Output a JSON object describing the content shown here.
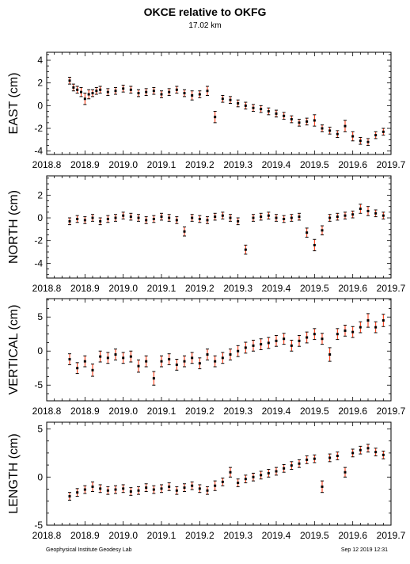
{
  "header": {
    "title": "OKCE relative to OKFG",
    "subtitle": "17.02 km"
  },
  "footer": {
    "left": "Geophysical Institute Geodesy Lab",
    "right": "Sep 12 2019 12:31"
  },
  "colors": {
    "error_bar": "#ff2a00",
    "marker": "#000000",
    "axis": "#000000"
  },
  "chart_data": [
    {
      "type": "scatter",
      "title": "",
      "ylabel": "EAST (cm)",
      "xlim": [
        2018.8,
        2019.7
      ],
      "ylim": [
        -4.3,
        4.7
      ],
      "yticks": [
        -4,
        -2,
        0,
        2,
        4
      ],
      "xticks": [
        "2018.8",
        "2018.9",
        "2019.0",
        "2019.1",
        "2019.2",
        "2019.3",
        "2019.4",
        "2019.5",
        "2019.6",
        "2019.7"
      ],
      "x": [
        2018.86,
        2018.87,
        2018.88,
        2018.89,
        2018.9,
        2018.91,
        2018.92,
        2018.93,
        2018.94,
        2018.96,
        2018.98,
        2019.0,
        2019.02,
        2019.04,
        2019.06,
        2019.08,
        2019.1,
        2019.12,
        2019.14,
        2019.16,
        2019.18,
        2019.2,
        2019.22,
        2019.24,
        2019.26,
        2019.28,
        2019.3,
        2019.32,
        2019.34,
        2019.36,
        2019.38,
        2019.4,
        2019.42,
        2019.44,
        2019.46,
        2019.48,
        2019.5,
        2019.52,
        2019.54,
        2019.56,
        2019.58,
        2019.6,
        2019.62,
        2019.64,
        2019.66,
        2019.68
      ],
      "y": [
        2.2,
        1.6,
        1.4,
        1.2,
        0.6,
        1.0,
        1.1,
        1.3,
        1.4,
        1.2,
        1.3,
        1.5,
        1.4,
        1.1,
        1.2,
        1.3,
        1.0,
        1.2,
        1.4,
        1.1,
        0.9,
        1.0,
        1.3,
        -1.0,
        0.6,
        0.5,
        0.2,
        0.0,
        -0.2,
        -0.3,
        -0.5,
        -0.7,
        -0.9,
        -1.2,
        -1.5,
        -1.4,
        -1.3,
        -2.0,
        -2.2,
        -2.5,
        -1.8,
        -2.7,
        -3.1,
        -3.2,
        -2.6,
        -2.3
      ],
      "errors": [
        0.3,
        0.3,
        0.3,
        0.4,
        0.5,
        0.4,
        0.3,
        0.3,
        0.3,
        0.3,
        0.3,
        0.3,
        0.3,
        0.3,
        0.3,
        0.3,
        0.3,
        0.3,
        0.3,
        0.3,
        0.4,
        0.3,
        0.4,
        0.5,
        0.3,
        0.3,
        0.3,
        0.3,
        0.3,
        0.3,
        0.3,
        0.3,
        0.3,
        0.3,
        0.3,
        0.3,
        0.5,
        0.3,
        0.3,
        0.3,
        0.5,
        0.4,
        0.3,
        0.3,
        0.3,
        0.3
      ]
    },
    {
      "type": "scatter",
      "title": "",
      "ylabel": "NORTH (cm)",
      "xlim": [
        2018.8,
        2019.7
      ],
      "ylim": [
        -5.3,
        3.7
      ],
      "yticks": [
        -4,
        -2,
        0,
        2
      ],
      "xticks": [
        "2018.8",
        "2018.9",
        "2019.0",
        "2019.1",
        "2019.2",
        "2019.3",
        "2019.4",
        "2019.5",
        "2019.6",
        "2019.7"
      ],
      "x": [
        2018.86,
        2018.88,
        2018.9,
        2018.92,
        2018.94,
        2018.96,
        2018.98,
        2019.0,
        2019.02,
        2019.04,
        2019.06,
        2019.08,
        2019.1,
        2019.12,
        2019.14,
        2019.16,
        2019.18,
        2019.2,
        2019.22,
        2019.24,
        2019.26,
        2019.28,
        2019.3,
        2019.32,
        2019.34,
        2019.36,
        2019.38,
        2019.4,
        2019.42,
        2019.44,
        2019.46,
        2019.48,
        2019.5,
        2019.52,
        2019.54,
        2019.56,
        2019.58,
        2019.6,
        2019.62,
        2019.64,
        2019.66,
        2019.68
      ],
      "y": [
        -0.3,
        -0.1,
        -0.2,
        0.0,
        -0.3,
        -0.1,
        0.0,
        0.2,
        0.1,
        0.0,
        -0.2,
        -0.1,
        0.1,
        0.0,
        -0.2,
        -1.2,
        0.0,
        -0.1,
        -0.2,
        0.1,
        0.2,
        0.0,
        -0.3,
        -2.8,
        0.0,
        0.1,
        0.2,
        0.0,
        -0.1,
        0.0,
        0.1,
        -1.3,
        -2.4,
        -1.1,
        0.0,
        0.1,
        0.2,
        0.3,
        0.8,
        0.6,
        0.4,
        0.2
      ],
      "errors": [
        0.3,
        0.3,
        0.3,
        0.3,
        0.3,
        0.3,
        0.3,
        0.3,
        0.3,
        0.3,
        0.3,
        0.3,
        0.3,
        0.3,
        0.3,
        0.4,
        0.3,
        0.3,
        0.3,
        0.3,
        0.3,
        0.3,
        0.3,
        0.4,
        0.3,
        0.3,
        0.3,
        0.3,
        0.3,
        0.3,
        0.3,
        0.4,
        0.5,
        0.4,
        0.3,
        0.3,
        0.3,
        0.3,
        0.4,
        0.4,
        0.3,
        0.3
      ]
    },
    {
      "type": "scatter",
      "title": "",
      "ylabel": "VERTICAL (cm)",
      "xlim": [
        2018.8,
        2019.7
      ],
      "ylim": [
        -7.3,
        7.7
      ],
      "yticks": [
        -5,
        0,
        5
      ],
      "xticks": [
        "2018.8",
        "2018.9",
        "2019.0",
        "2019.1",
        "2019.2",
        "2019.3",
        "2019.4",
        "2019.5",
        "2019.6",
        "2019.7"
      ],
      "x": [
        2018.86,
        2018.88,
        2018.9,
        2018.92,
        2018.94,
        2018.96,
        2018.98,
        2019.0,
        2019.02,
        2019.04,
        2019.06,
        2019.08,
        2019.1,
        2019.12,
        2019.14,
        2019.16,
        2019.18,
        2019.2,
        2019.22,
        2019.24,
        2019.26,
        2019.28,
        2019.3,
        2019.32,
        2019.34,
        2019.36,
        2019.38,
        2019.4,
        2019.42,
        2019.44,
        2019.46,
        2019.48,
        2019.5,
        2019.52,
        2019.54,
        2019.56,
        2019.58,
        2019.6,
        2019.62,
        2019.64,
        2019.66,
        2019.68
      ],
      "y": [
        -1.2,
        -2.5,
        -1.5,
        -2.8,
        -0.8,
        -1.0,
        -0.5,
        -1.0,
        -0.8,
        -2.2,
        -1.5,
        -4.0,
        -1.5,
        -1.2,
        -2.0,
        -1.5,
        -1.0,
        -1.8,
        -0.5,
        -1.5,
        -1.0,
        -0.5,
        0.0,
        0.5,
        0.8,
        1.0,
        1.2,
        1.5,
        1.8,
        0.8,
        1.5,
        2.0,
        2.5,
        1.8,
        -0.5,
        2.5,
        3.0,
        2.8,
        3.5,
        4.5,
        3.5,
        4.5
      ],
      "errors": [
        0.8,
        0.8,
        0.8,
        0.9,
        0.8,
        0.8,
        0.8,
        0.8,
        0.8,
        0.9,
        0.8,
        1.0,
        0.8,
        0.8,
        0.8,
        0.8,
        0.8,
        0.8,
        0.8,
        0.8,
        0.8,
        0.8,
        0.8,
        0.8,
        0.8,
        0.8,
        0.8,
        0.8,
        0.8,
        0.8,
        0.8,
        0.8,
        0.8,
        0.8,
        1.0,
        0.8,
        0.8,
        0.8,
        0.8,
        1.0,
        0.8,
        0.9
      ]
    },
    {
      "type": "scatter",
      "title": "",
      "ylabel": "LENGTH (cm)",
      "xlim": [
        2018.8,
        2019.7
      ],
      "ylim": [
        -5.0,
        5.7
      ],
      "yticks": [
        -5,
        0,
        5
      ],
      "xticks": [
        "2018.8",
        "2018.9",
        "2019.0",
        "2019.1",
        "2019.2",
        "2019.3",
        "2019.4",
        "2019.5",
        "2019.6",
        "2019.7"
      ],
      "x": [
        2018.86,
        2018.88,
        2018.9,
        2018.92,
        2018.94,
        2018.96,
        2018.98,
        2019.0,
        2019.02,
        2019.04,
        2019.06,
        2019.08,
        2019.1,
        2019.12,
        2019.14,
        2019.16,
        2019.18,
        2019.2,
        2019.22,
        2019.24,
        2019.26,
        2019.28,
        2019.3,
        2019.32,
        2019.34,
        2019.36,
        2019.38,
        2019.4,
        2019.42,
        2019.44,
        2019.46,
        2019.48,
        2019.5,
        2019.52,
        2019.54,
        2019.56,
        2019.58,
        2019.6,
        2019.62,
        2019.64,
        2019.66,
        2019.68
      ],
      "y": [
        -2.0,
        -1.6,
        -1.3,
        -1.0,
        -1.2,
        -1.4,
        -1.3,
        -1.2,
        -1.5,
        -1.4,
        -1.1,
        -1.3,
        -1.2,
        -1.0,
        -1.4,
        -1.1,
        -0.9,
        -1.2,
        -1.4,
        -0.9,
        -0.5,
        0.5,
        -0.6,
        -0.2,
        0.0,
        0.2,
        0.4,
        0.6,
        0.9,
        1.2,
        1.4,
        1.8,
        1.9,
        -1.0,
        2.0,
        2.2,
        0.5,
        2.5,
        2.8,
        3.0,
        2.6,
        2.3
      ],
      "errors": [
        0.4,
        0.4,
        0.4,
        0.5,
        0.4,
        0.4,
        0.4,
        0.4,
        0.4,
        0.4,
        0.4,
        0.4,
        0.4,
        0.4,
        0.4,
        0.4,
        0.4,
        0.4,
        0.4,
        0.5,
        0.4,
        0.5,
        0.4,
        0.4,
        0.4,
        0.4,
        0.4,
        0.4,
        0.4,
        0.4,
        0.4,
        0.4,
        0.4,
        0.6,
        0.4,
        0.4,
        0.5,
        0.4,
        0.4,
        0.4,
        0.4,
        0.4
      ]
    }
  ]
}
